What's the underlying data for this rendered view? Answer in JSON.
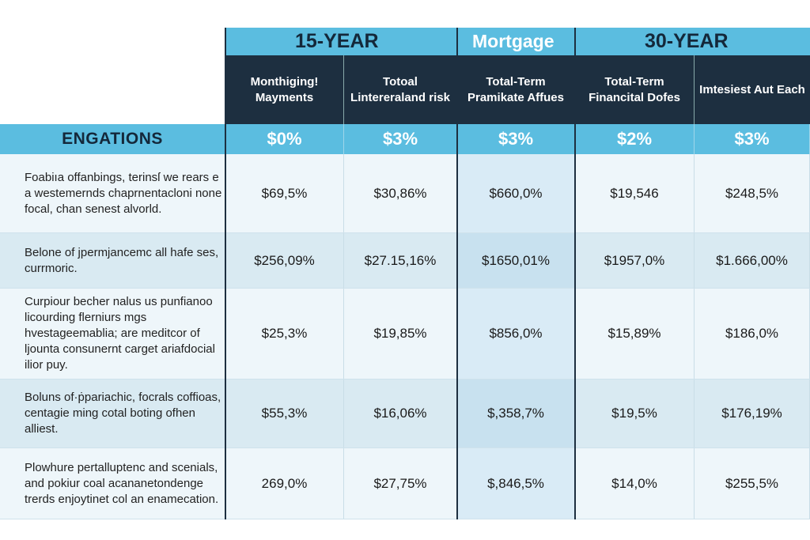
{
  "band": {
    "left": "15-YEAR",
    "center": "Mortgage",
    "right": "30-YEAR"
  },
  "headers": [
    "Monthiging! Mayments",
    "Totoal Lintereraland risk",
    "Total-Term Pramikate Affues",
    "Total-Term Financital Dofes",
    "Imtesiest Aut Each"
  ],
  "summary": {
    "label": "ENGATIONS",
    "values": [
      "$0%",
      "$3%",
      "$3%",
      "$2%",
      "$3%"
    ]
  },
  "rows": [
    {
      "desc": "Foabiıa offanbings, terinsſ we rears e a westemernds chaprnentacloni none focal, chan senest alvorld.",
      "values": [
        "$69,5%",
        "$30,86%",
        "$660,0%",
        "$19,546",
        "$248,5%"
      ]
    },
    {
      "desc": "Belone of jpermjancemc all hafe ses, currmoric.",
      "values": [
        "$256,09%",
        "$27.15,16%",
        "$1650,01%",
        "$1957,0%",
        "$1.666,00%"
      ]
    },
    {
      "desc": "Curpiour becher nalus us punfianoo licourding flerniurs mgs hvestageemablia; are meditcor of ljounta consunernt carget ariafdocial ilior puy.",
      "values": [
        "$25,3%",
        "$19,85%",
        "$856,0%",
        "$15,89%",
        "$186,0%"
      ]
    },
    {
      "desc": "Boluns of·ṗpariachic, focrals coffioas, centagie ming cotal boting ofhen alliest.",
      "values": [
        "$55,3%",
        "$16,06%",
        "$,358,7%",
        "$19,5%",
        "$176,19%"
      ]
    },
    {
      "desc": "Plowhure pertalluptenc and scenials, and pokiur coal acananetondenge trerds enjoytinet col an enamecation.",
      "values": [
        "269,0%",
        "$27,75%",
        "$,846,5%",
        "$14,0%",
        "$255,5%"
      ]
    }
  ],
  "colors": {
    "accent": "#5bbde0",
    "header": "#1d2f40"
  }
}
